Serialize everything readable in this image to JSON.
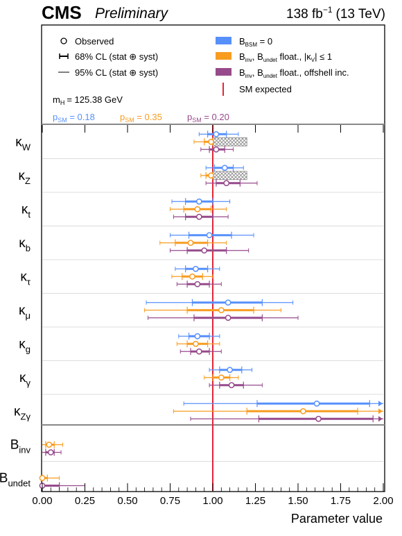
{
  "header": {
    "experiment": "CMS",
    "status": "Preliminary",
    "lumi_value": "138 fb",
    "lumi_exp": "−1",
    "energy": "(13 TeV)"
  },
  "legend": {
    "observed": "Observed",
    "cl68": "68% CL (stat ⊕ syst)",
    "cl95": "95% CL (stat ⊕ syst)",
    "mh": "m",
    "mh_sub": "H",
    "mh_val": "= 125.38 GeV",
    "series_labels": [
      {
        "main": "B",
        "sub": "BSM",
        "rest": " = 0"
      },
      {
        "main": "B",
        "sub": "inv",
        "mid": ", B",
        "sub2": "undet",
        "rest": " float., |κ",
        "sub3": "V",
        "rest2": "| ≤ 1"
      },
      {
        "main": "B",
        "sub": "inv",
        "mid": ", B",
        "sub2": "undet",
        "rest": " float., offshell inc."
      }
    ],
    "sm_expected": "SM expected",
    "p_values": [
      {
        "main": "p",
        "sub": "SM",
        "rest": " = 0.18"
      },
      {
        "main": "p",
        "sub": "SM",
        "rest": " = 0.35"
      },
      {
        "main": "p",
        "sub": "SM",
        "rest": " = 0.20"
      }
    ]
  },
  "colors": {
    "series": [
      "#5790fc",
      "#f89c20",
      "#964a8b"
    ],
    "sm_line": "#e42536",
    "frame": "#000000",
    "separator": "#888888"
  },
  "chart_data": {
    "type": "scatter",
    "xlabel": "Parameter value",
    "xlim": [
      0,
      2
    ],
    "x_ticks": [
      "0.00",
      "0.25",
      "0.50",
      "0.75",
      "1.00",
      "1.25",
      "1.50",
      "1.75",
      "2.00"
    ],
    "sm_expected_value": 1.0,
    "series": [
      {
        "name": "B_BSM = 0"
      },
      {
        "name": "B_inv, B_undet float., |κ_V| ≤ 1"
      },
      {
        "name": "B_inv, B_undet float., offshell inc."
      }
    ],
    "parameters": [
      {
        "label": "κ",
        "sub": "W",
        "entries": [
          {
            "obs": 1.02,
            "cl68": [
              0.97,
              1.08
            ],
            "cl95": [
              0.92,
              1.15
            ]
          },
          {
            "obs": 0.99,
            "cl68": [
              0.95,
              1.0
            ],
            "cl95": [
              0.89,
              1.0
            ],
            "excluded": [
              1.0,
              1.2
            ]
          },
          {
            "obs": 1.02,
            "cl68": [
              0.98,
              1.07
            ],
            "cl95": [
              0.93,
              1.12
            ]
          }
        ]
      },
      {
        "label": "κ",
        "sub": "Z",
        "entries": [
          {
            "obs": 1.07,
            "cl68": [
              1.01,
              1.12
            ],
            "cl95": [
              0.96,
              1.18
            ]
          },
          {
            "obs": 0.99,
            "cl68": [
              0.96,
              1.0
            ],
            "cl95": [
              0.93,
              1.0
            ],
            "excluded": [
              1.0,
              1.2
            ]
          },
          {
            "obs": 1.08,
            "cl68": [
              1.02,
              1.16
            ],
            "cl95": [
              0.96,
              1.26
            ]
          }
        ]
      },
      {
        "label": "κ",
        "sub": "t",
        "entries": [
          {
            "obs": 0.92,
            "cl68": [
              0.84,
              1.0
            ],
            "cl95": [
              0.76,
              1.1
            ]
          },
          {
            "obs": 0.91,
            "cl68": [
              0.83,
              0.99
            ],
            "cl95": [
              0.75,
              1.08
            ]
          },
          {
            "obs": 0.92,
            "cl68": [
              0.84,
              1.0
            ],
            "cl95": [
              0.77,
              1.09
            ]
          }
        ]
      },
      {
        "label": "κ",
        "sub": "b",
        "entries": [
          {
            "obs": 0.98,
            "cl68": [
              0.86,
              1.11
            ],
            "cl95": [
              0.75,
              1.24
            ]
          },
          {
            "obs": 0.87,
            "cl68": [
              0.78,
              0.97
            ],
            "cl95": [
              0.69,
              1.08
            ]
          },
          {
            "obs": 0.95,
            "cl68": [
              0.85,
              1.08
            ],
            "cl95": [
              0.75,
              1.21
            ]
          }
        ]
      },
      {
        "label": "κ",
        "sub": "τ",
        "entries": [
          {
            "obs": 0.9,
            "cl68": [
              0.84,
              0.97
            ],
            "cl95": [
              0.78,
              1.04
            ]
          },
          {
            "obs": 0.88,
            "cl68": [
              0.82,
              0.94
            ],
            "cl95": [
              0.76,
              1.0
            ]
          },
          {
            "obs": 0.91,
            "cl68": [
              0.85,
              0.98
            ],
            "cl95": [
              0.79,
              1.05
            ]
          }
        ]
      },
      {
        "label": "κ",
        "sub": "μ",
        "entries": [
          {
            "obs": 1.09,
            "cl68": [
              0.88,
              1.29
            ],
            "cl95": [
              0.61,
              1.47
            ]
          },
          {
            "obs": 1.05,
            "cl68": [
              0.85,
              1.24
            ],
            "cl95": [
              0.6,
              1.4
            ]
          },
          {
            "obs": 1.09,
            "cl68": [
              0.89,
              1.29
            ],
            "cl95": [
              0.62,
              1.5
            ]
          }
        ]
      },
      {
        "label": "κ",
        "sub": "g",
        "entries": [
          {
            "obs": 0.91,
            "cl68": [
              0.86,
              0.98
            ],
            "cl95": [
              0.8,
              1.04
            ]
          },
          {
            "obs": 0.9,
            "cl68": [
              0.85,
              0.97
            ],
            "cl95": [
              0.79,
              1.04
            ]
          },
          {
            "obs": 0.92,
            "cl68": [
              0.87,
              0.98
            ],
            "cl95": [
              0.81,
              1.05
            ]
          }
        ]
      },
      {
        "label": "κ",
        "sub": "γ",
        "entries": [
          {
            "obs": 1.1,
            "cl68": [
              1.04,
              1.17
            ],
            "cl95": [
              0.98,
              1.23
            ]
          },
          {
            "obs": 1.05,
            "cl68": [
              1.0,
              1.1
            ],
            "cl95": [
              0.95,
              1.15
            ]
          },
          {
            "obs": 1.11,
            "cl68": [
              1.04,
              1.18
            ],
            "cl95": [
              0.98,
              1.29
            ]
          }
        ]
      },
      {
        "label": "κ",
        "sub": "Zγ",
        "entries": [
          {
            "obs": 1.61,
            "cl68": [
              1.26,
              1.92
            ],
            "cl95": [
              0.83,
              2.0
            ]
          },
          {
            "obs": 1.53,
            "cl68": [
              1.2,
              1.85
            ],
            "cl95": [
              0.77,
              2.0
            ]
          },
          {
            "obs": 1.62,
            "cl68": [
              1.27,
              1.94
            ],
            "cl95": [
              0.87,
              2.0
            ]
          }
        ]
      },
      {
        "label": "B",
        "sub": "inv",
        "entries": [
          null,
          {
            "obs": 0.04,
            "cl68": [
              0.02,
              0.07
            ],
            "cl95": [
              0.0,
              0.12
            ]
          },
          {
            "obs": 0.05,
            "cl68": [
              0.02,
              0.07
            ],
            "cl95": [
              0.0,
              0.11
            ]
          }
        ]
      },
      {
        "label": "B",
        "sub": "undet",
        "entries": [
          null,
          {
            "obs": 0.0,
            "cl68": [
              0.0,
              0.03
            ],
            "cl95": [
              0.0,
              0.1
            ]
          },
          {
            "obs": 0.0,
            "cl68": [
              0.0,
              0.1
            ],
            "cl95": [
              0.0,
              0.25
            ]
          }
        ]
      }
    ]
  }
}
